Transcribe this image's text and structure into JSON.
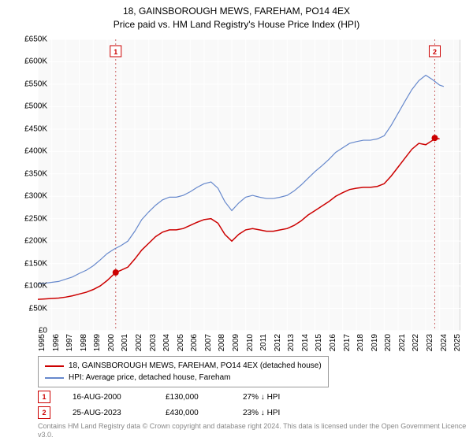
{
  "title_line1": "18, GAINSBOROUGH MEWS, FAREHAM, PO14 4EX",
  "title_line2": "Price paid vs. HM Land Registry's House Price Index (HPI)",
  "chart": {
    "type": "line",
    "plot_bg": "#f9f9f9",
    "grid_color": "#ffffff",
    "grid_width": 1,
    "axis_color": "#666666",
    "xlim": [
      1995,
      2025.5
    ],
    "ylim": [
      0,
      650000
    ],
    "ytick_step": 50000,
    "ytick_labels": [
      "£0",
      "£50K",
      "£100K",
      "£150K",
      "£200K",
      "£250K",
      "£300K",
      "£350K",
      "£400K",
      "£450K",
      "£500K",
      "£550K",
      "£600K",
      "£650K"
    ],
    "xtick_years": [
      1995,
      1996,
      1997,
      1998,
      1999,
      2000,
      2001,
      2002,
      2003,
      2004,
      2005,
      2006,
      2007,
      2008,
      2009,
      2010,
      2011,
      2012,
      2013,
      2014,
      2015,
      2016,
      2017,
      2018,
      2019,
      2020,
      2021,
      2022,
      2023,
      2024,
      2025
    ],
    "series": [
      {
        "name": "property",
        "label": "18, GAINSBOROUGH MEWS, FAREHAM, PO14 4EX (detached house)",
        "color": "#cc0000",
        "width": 1.5,
        "data": [
          [
            1995.0,
            70000
          ],
          [
            1995.5,
            71000
          ],
          [
            1996.0,
            72000
          ],
          [
            1996.5,
            73000
          ],
          [
            1997.0,
            75000
          ],
          [
            1997.5,
            78000
          ],
          [
            1998.0,
            82000
          ],
          [
            1998.5,
            86000
          ],
          [
            1999.0,
            92000
          ],
          [
            1999.5,
            100000
          ],
          [
            2000.0,
            112000
          ],
          [
            2000.62,
            130000
          ],
          [
            2001.0,
            135000
          ],
          [
            2001.5,
            142000
          ],
          [
            2002.0,
            160000
          ],
          [
            2002.5,
            180000
          ],
          [
            2003.0,
            195000
          ],
          [
            2003.5,
            210000
          ],
          [
            2004.0,
            220000
          ],
          [
            2004.5,
            225000
          ],
          [
            2005.0,
            225000
          ],
          [
            2005.5,
            228000
          ],
          [
            2006.0,
            235000
          ],
          [
            2006.5,
            242000
          ],
          [
            2007.0,
            248000
          ],
          [
            2007.5,
            250000
          ],
          [
            2008.0,
            240000
          ],
          [
            2008.5,
            215000
          ],
          [
            2009.0,
            200000
          ],
          [
            2009.5,
            215000
          ],
          [
            2010.0,
            225000
          ],
          [
            2010.5,
            228000
          ],
          [
            2011.0,
            225000
          ],
          [
            2011.5,
            222000
          ],
          [
            2012.0,
            222000
          ],
          [
            2012.5,
            225000
          ],
          [
            2013.0,
            228000
          ],
          [
            2013.5,
            235000
          ],
          [
            2014.0,
            245000
          ],
          [
            2014.5,
            258000
          ],
          [
            2015.0,
            268000
          ],
          [
            2015.5,
            278000
          ],
          [
            2016.0,
            288000
          ],
          [
            2016.5,
            300000
          ],
          [
            2017.0,
            308000
          ],
          [
            2017.5,
            315000
          ],
          [
            2018.0,
            318000
          ],
          [
            2018.5,
            320000
          ],
          [
            2019.0,
            320000
          ],
          [
            2019.5,
            322000
          ],
          [
            2020.0,
            328000
          ],
          [
            2020.5,
            345000
          ],
          [
            2021.0,
            365000
          ],
          [
            2021.5,
            385000
          ],
          [
            2022.0,
            405000
          ],
          [
            2022.5,
            418000
          ],
          [
            2023.0,
            415000
          ],
          [
            2023.5,
            425000
          ],
          [
            2023.65,
            430000
          ],
          [
            2024.0,
            428000
          ]
        ]
      },
      {
        "name": "hpi",
        "label": "HPI: Average price, detached house, Fareham",
        "color": "#6688cc",
        "width": 1.2,
        "data": [
          [
            1995.0,
            105000
          ],
          [
            1995.5,
            106000
          ],
          [
            1996.0,
            108000
          ],
          [
            1996.5,
            110000
          ],
          [
            1997.0,
            115000
          ],
          [
            1997.5,
            120000
          ],
          [
            1998.0,
            128000
          ],
          [
            1998.5,
            135000
          ],
          [
            1999.0,
            145000
          ],
          [
            1999.5,
            158000
          ],
          [
            2000.0,
            172000
          ],
          [
            2000.5,
            182000
          ],
          [
            2001.0,
            190000
          ],
          [
            2001.5,
            200000
          ],
          [
            2002.0,
            222000
          ],
          [
            2002.5,
            248000
          ],
          [
            2003.0,
            265000
          ],
          [
            2003.5,
            280000
          ],
          [
            2004.0,
            292000
          ],
          [
            2004.5,
            298000
          ],
          [
            2005.0,
            298000
          ],
          [
            2005.5,
            302000
          ],
          [
            2006.0,
            310000
          ],
          [
            2006.5,
            320000
          ],
          [
            2007.0,
            328000
          ],
          [
            2007.5,
            332000
          ],
          [
            2008.0,
            318000
          ],
          [
            2008.5,
            288000
          ],
          [
            2009.0,
            268000
          ],
          [
            2009.5,
            285000
          ],
          [
            2010.0,
            298000
          ],
          [
            2010.5,
            302000
          ],
          [
            2011.0,
            298000
          ],
          [
            2011.5,
            295000
          ],
          [
            2012.0,
            295000
          ],
          [
            2012.5,
            298000
          ],
          [
            2013.0,
            302000
          ],
          [
            2013.5,
            312000
          ],
          [
            2014.0,
            325000
          ],
          [
            2014.5,
            340000
          ],
          [
            2015.0,
            355000
          ],
          [
            2015.5,
            368000
          ],
          [
            2016.0,
            382000
          ],
          [
            2016.5,
            398000
          ],
          [
            2017.0,
            408000
          ],
          [
            2017.5,
            418000
          ],
          [
            2018.0,
            422000
          ],
          [
            2018.5,
            425000
          ],
          [
            2019.0,
            425000
          ],
          [
            2019.5,
            428000
          ],
          [
            2020.0,
            435000
          ],
          [
            2020.5,
            458000
          ],
          [
            2021.0,
            485000
          ],
          [
            2021.5,
            512000
          ],
          [
            2022.0,
            538000
          ],
          [
            2022.5,
            558000
          ],
          [
            2023.0,
            570000
          ],
          [
            2023.5,
            560000
          ],
          [
            2024.0,
            548000
          ],
          [
            2024.3,
            545000
          ]
        ]
      }
    ],
    "markers": [
      {
        "n": "1",
        "year": 2000.62,
        "value": 130000,
        "color": "#cc0000",
        "dotted_line_color": "#cc6666"
      },
      {
        "n": "2",
        "year": 2023.65,
        "value": 430000,
        "color": "#cc0000",
        "dotted_line_color": "#cc6666"
      }
    ]
  },
  "legend": {
    "border_color": "#999999"
  },
  "marker_table": [
    {
      "n": "1",
      "date": "16-AUG-2000",
      "price": "£130,000",
      "delta": "27% ↓ HPI"
    },
    {
      "n": "2",
      "date": "25-AUG-2023",
      "price": "£430,000",
      "delta": "23% ↓ HPI"
    }
  ],
  "license_text": "Contains HM Land Registry data © Crown copyright and database right 2024. This data is licensed under the Open Government Licence v3.0."
}
